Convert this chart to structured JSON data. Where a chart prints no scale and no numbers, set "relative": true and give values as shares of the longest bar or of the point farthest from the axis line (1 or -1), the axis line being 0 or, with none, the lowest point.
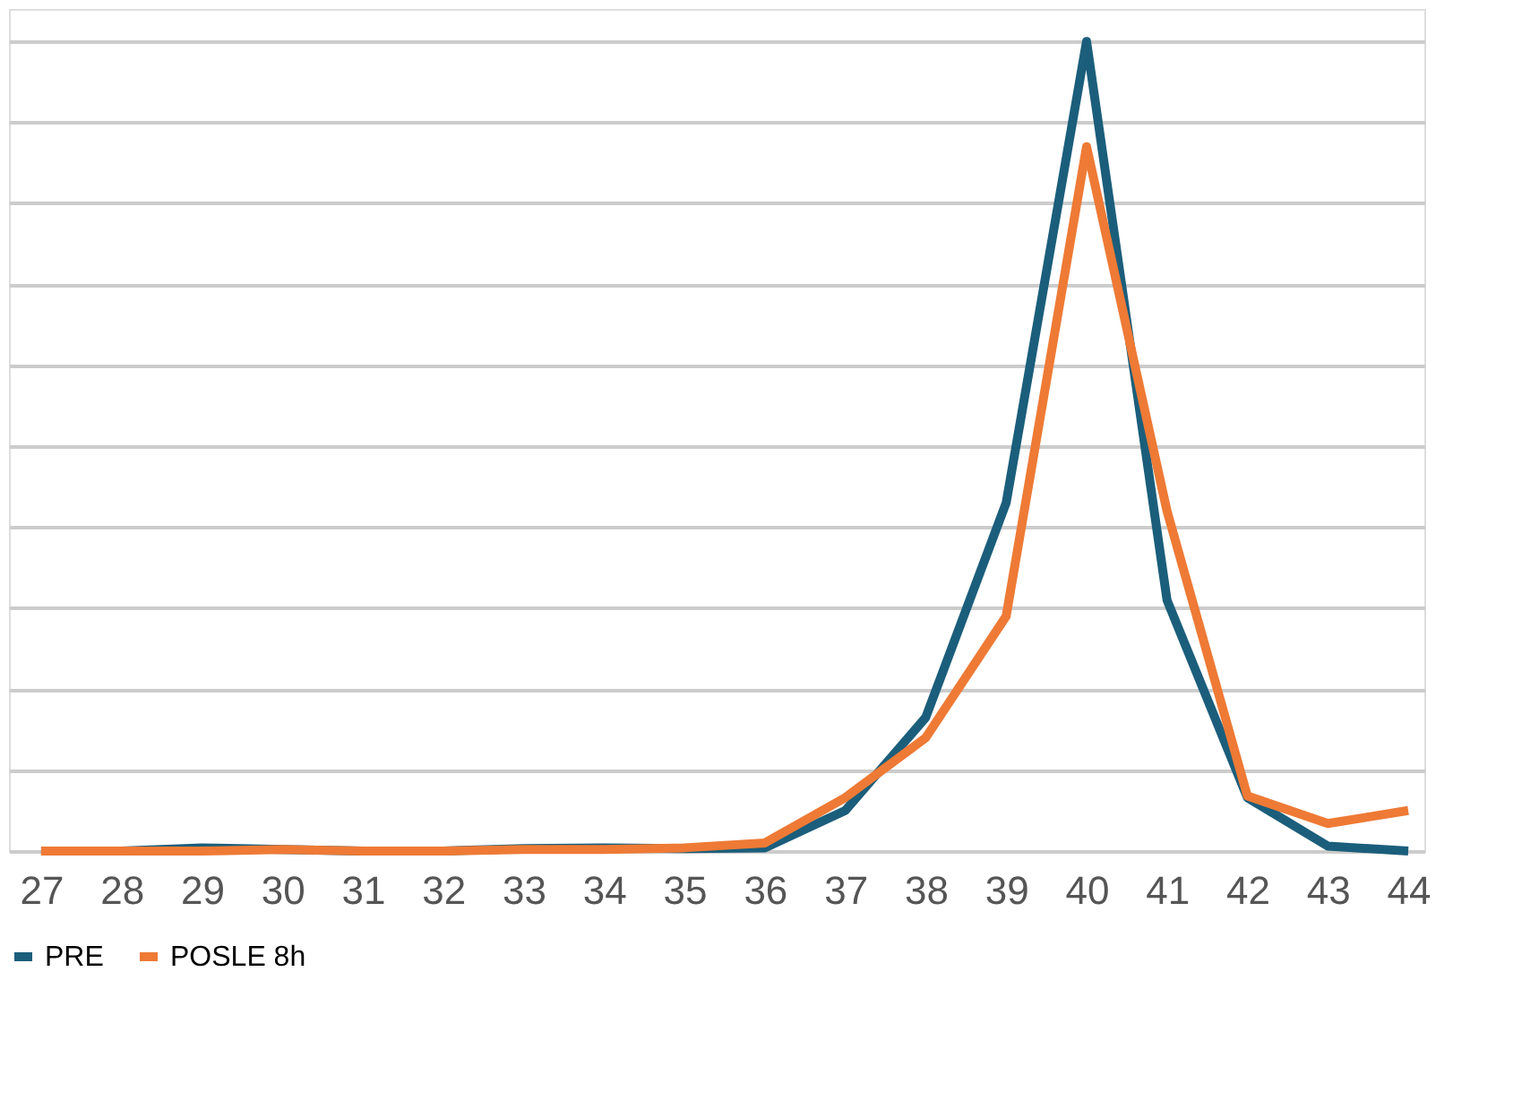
{
  "chart_data": {
    "type": "line",
    "relative": true,
    "grid": "y",
    "legend": "bottom",
    "line_style": "solid",
    "marker": "none",
    "categories": [
      "27",
      "28",
      "29",
      "30",
      "31",
      "32",
      "33",
      "34",
      "35",
      "36",
      "37",
      "38",
      "39",
      "40",
      "41",
      "42",
      "43",
      "44"
    ],
    "series": [
      {
        "name": "PRE",
        "color": "#1b5e7b",
        "values": [
          0,
          0,
          0.004,
          0.002,
          0,
          0,
          0.003,
          0.004,
          0.003,
          0.004,
          0.05,
          0.165,
          0.43,
          1,
          0.31,
          0.066,
          0.006,
          0
        ]
      },
      {
        "name": "POSLE 8h",
        "color": "#ee7a35",
        "values": [
          0,
          0,
          0,
          0.002,
          0,
          0,
          0.002,
          0.002,
          0.004,
          0.01,
          0.066,
          0.14,
          0.29,
          0.87,
          0.42,
          0.068,
          0.034,
          0.05
        ]
      }
    ]
  }
}
